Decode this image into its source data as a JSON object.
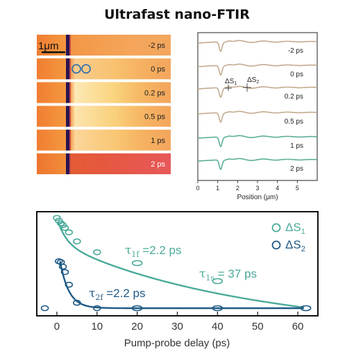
{
  "title": "Ultrafast nano-FTIR",
  "images": {
    "scalebar_label": "1μm",
    "strips": [
      {
        "label": "-2 ps",
        "brightness": 0.0
      },
      {
        "label": "0 ps",
        "brightness": 0.55
      },
      {
        "label": "0.2 ps",
        "brightness": 0.85
      },
      {
        "label": "0.5 ps",
        "brightness": 0.8
      },
      {
        "label": "1 ps",
        "brightness": 0.65
      },
      {
        "label": "2 ps",
        "brightness": 0.0
      }
    ],
    "circle_color": "#2a6cb0"
  },
  "profiles": {
    "labels": [
      "-2 ps",
      "0 ps",
      "0.2 ps",
      "0.5 ps",
      "1 ps",
      "2 ps"
    ],
    "colors": [
      "#c4ab8e",
      "#c4ab8e",
      "#c4ab8e",
      "#c4ab8e",
      "#5cae9a",
      "#5cae9a"
    ],
    "xlabel": "Position (μm)",
    "xticks": [
      "0",
      "1",
      "2",
      "3",
      "4",
      "5"
    ],
    "xlim": [
      0,
      6
    ],
    "annot1": "ΔS",
    "annot1_sub": "1",
    "annot2": "ΔS",
    "annot2_sub": "2"
  },
  "chart_data": {
    "type": "scatter",
    "title": "",
    "xlabel": "Pump-probe delay (ps)",
    "ylabel": "",
    "xlim": [
      -5,
      65
    ],
    "xticks": [
      "0",
      "10",
      "20",
      "30",
      "40",
      "50",
      "60"
    ],
    "series": [
      {
        "name": "ΔS1",
        "color": "#4aaa9a",
        "x": [
          0,
          0.5,
          1,
          1.5,
          2,
          3,
          5,
          10,
          20,
          40
        ],
        "y": [
          1.0,
          0.97,
          0.94,
          0.92,
          0.89,
          0.84,
          0.74,
          0.62,
          0.5,
          0.3
        ]
      },
      {
        "name": "ΔS2",
        "color": "#1f5a86",
        "x": [
          -3,
          0.5,
          1,
          1.5,
          2,
          3,
          5,
          10,
          20,
          40,
          62
        ],
        "y": [
          0.0,
          0.52,
          0.51,
          0.46,
          0.4,
          0.26,
          0.06,
          0.0,
          0.0,
          0.0,
          0.0
        ]
      }
    ],
    "annotations": [
      {
        "base": "τ",
        "sub": "1f",
        "text": " =2.2 ps"
      },
      {
        "base": "τ",
        "sub": "1s",
        "text": " = 37 ps"
      },
      {
        "base": "τ",
        "sub": "2f",
        "text": " =2.2 ps"
      }
    ],
    "legend": [
      {
        "label": "ΔS",
        "sub": "1",
        "color": "#4aaa9a"
      },
      {
        "label": "ΔS",
        "sub": "2",
        "color": "#1f5a86"
      }
    ]
  }
}
